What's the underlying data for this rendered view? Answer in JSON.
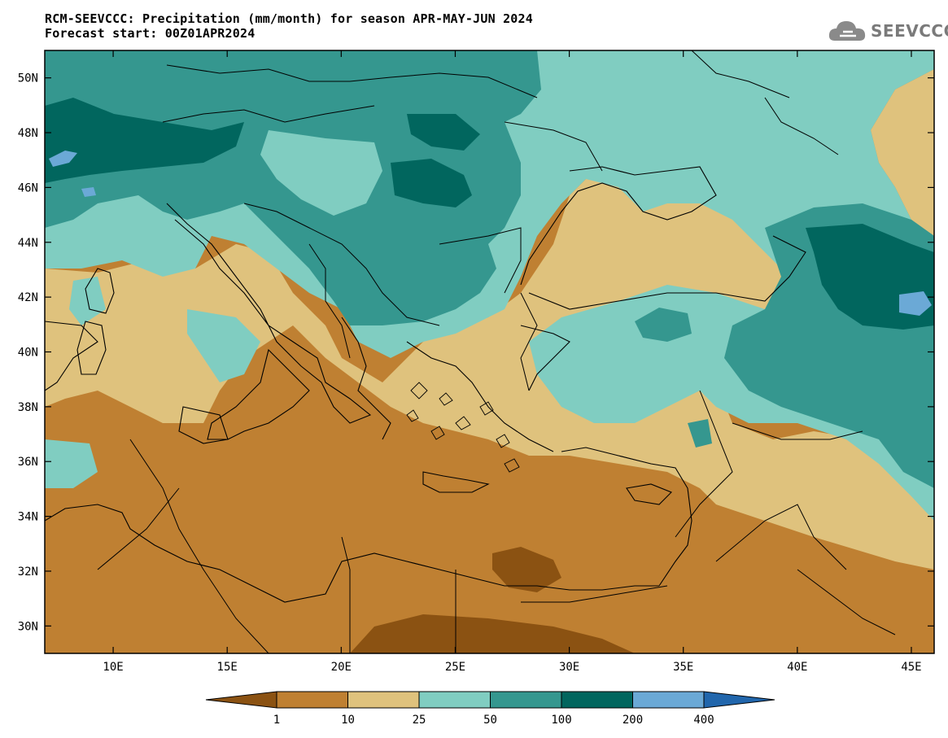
{
  "header": {
    "title_line1": "RCM-SEEVCCC: Precipitation (mm/month) for season APR-MAY-JUN 2024",
    "title_line2": "Forecast start: 00Z01APR2024"
  },
  "logo": {
    "text": "SEEVCCC",
    "icon": "cloud-icon"
  },
  "map": {
    "lon_range": [
      7,
      46
    ],
    "lat_range": [
      29,
      51
    ],
    "x_ticks": [
      "10E",
      "15E",
      "20E",
      "25E",
      "30E",
      "35E",
      "40E",
      "45E"
    ],
    "x_tick_values": [
      10,
      15,
      20,
      25,
      30,
      35,
      40,
      45
    ],
    "y_ticks": [
      "30N",
      "32N",
      "34N",
      "36N",
      "38N",
      "40N",
      "42N",
      "44N",
      "46N",
      "48N",
      "50N"
    ],
    "y_tick_values": [
      30,
      32,
      34,
      36,
      38,
      40,
      42,
      44,
      46,
      48,
      50
    ]
  },
  "colorbar": {
    "labels": [
      "1",
      "10",
      "25",
      "50",
      "100",
      "200",
      "400"
    ],
    "colors": [
      "#8b5212",
      "#bf8032",
      "#dfc27d",
      "#80cdc1",
      "#35978f",
      "#01665e",
      "#6ba9d6",
      "#2166ac"
    ]
  }
}
